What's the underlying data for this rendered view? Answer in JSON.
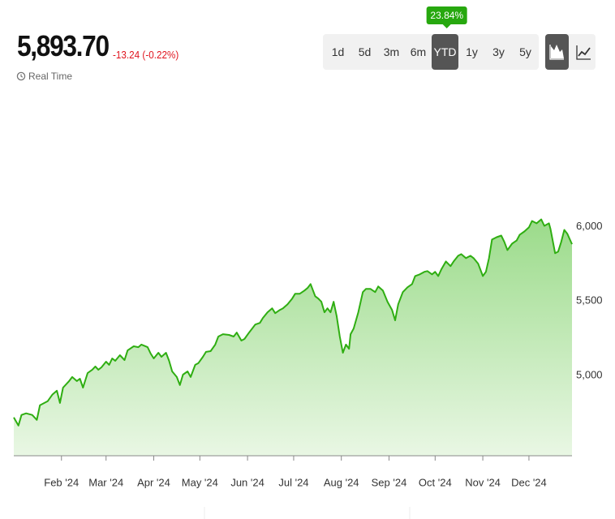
{
  "header": {
    "price": "5,893.70",
    "change": "-13.24 (-0.22%)",
    "real_time": "Real Time",
    "ranges": [
      "1d",
      "5d",
      "3m",
      "6m",
      "YTD",
      "1y",
      "3y",
      "5y"
    ],
    "selected_range": 4,
    "badge": "23.84%"
  },
  "chart_data": {
    "type": "area",
    "color": "#2fae12",
    "x": [
      1,
      4,
      6,
      9,
      13,
      16,
      18,
      23,
      26,
      29,
      31,
      33,
      37,
      39,
      42,
      44,
      46,
      49,
      52,
      54,
      56,
      58,
      61,
      63,
      65,
      67,
      70,
      73,
      75,
      79,
      82,
      84,
      88,
      90,
      92,
      95,
      97,
      100,
      102,
      104,
      107,
      109,
      111,
      114,
      116,
      119,
      121,
      124,
      126,
      129,
      132,
      134,
      137,
      141,
      144,
      146,
      149,
      151,
      154,
      158,
      161,
      163,
      166,
      169,
      171,
      174,
      176,
      179,
      182,
      184,
      187,
      190,
      192,
      194,
      197,
      199,
      201,
      203,
      205,
      207,
      209,
      211,
      213,
      215,
      217,
      219,
      220,
      222,
      225,
      228,
      230,
      233,
      236,
      238,
      241,
      244,
      247,
      249,
      251,
      254,
      257,
      260,
      262,
      265,
      268,
      270,
      273,
      275,
      277,
      279,
      282,
      285,
      287,
      290,
      292,
      295,
      298,
      300,
      303,
      306,
      308,
      310,
      312,
      315,
      318,
      320,
      322,
      325,
      328,
      330,
      333,
      336,
      338,
      341,
      344,
      346,
      349,
      350,
      353,
      355,
      357,
      359,
      361,
      364
    ],
    "values": [
      4717,
      4663,
      4734,
      4745,
      4734,
      4701,
      4799,
      4826,
      4870,
      4897,
      4815,
      4918,
      4962,
      4989,
      4962,
      4978,
      4918,
      5016,
      5038,
      5060,
      5038,
      5054,
      5092,
      5071,
      5114,
      5098,
      5136,
      5103,
      5168,
      5196,
      5190,
      5207,
      5190,
      5147,
      5114,
      5152,
      5125,
      5152,
      5098,
      5027,
      4989,
      4935,
      5005,
      5027,
      4989,
      5071,
      5082,
      5125,
      5158,
      5163,
      5207,
      5261,
      5277,
      5272,
      5261,
      5288,
      5234,
      5245,
      5288,
      5342,
      5353,
      5386,
      5424,
      5451,
      5418,
      5440,
      5451,
      5478,
      5516,
      5549,
      5549,
      5570,
      5587,
      5614,
      5532,
      5516,
      5495,
      5424,
      5451,
      5424,
      5495,
      5397,
      5261,
      5152,
      5207,
      5179,
      5277,
      5315,
      5424,
      5560,
      5581,
      5581,
      5560,
      5598,
      5570,
      5495,
      5440,
      5370,
      5478,
      5560,
      5592,
      5614,
      5668,
      5679,
      5696,
      5701,
      5679,
      5696,
      5668,
      5712,
      5766,
      5734,
      5766,
      5804,
      5815,
      5788,
      5804,
      5788,
      5750,
      5668,
      5696,
      5788,
      5913,
      5929,
      5940,
      5897,
      5842,
      5885,
      5907,
      5946,
      5967,
      5995,
      6038,
      6022,
      6049,
      6005,
      6022,
      5984,
      5821,
      5832,
      5897,
      5978,
      5951,
      5882
    ],
    "xlim": [
      1,
      364
    ],
    "xticks": [
      {
        "value": 32,
        "label": "Feb '24"
      },
      {
        "value": 61,
        "label": "Mar '24"
      },
      {
        "value": 92,
        "label": "Apr '24"
      },
      {
        "value": 122,
        "label": "May '24"
      },
      {
        "value": 153,
        "label": "Jun '24"
      },
      {
        "value": 183,
        "label": "Jul '24"
      },
      {
        "value": 214,
        "label": "Aug '24"
      },
      {
        "value": 245,
        "label": "Sep '24"
      },
      {
        "value": 275,
        "label": "Oct '24"
      },
      {
        "value": 306,
        "label": "Nov '24"
      },
      {
        "value": 336,
        "label": "Dec '24"
      }
    ],
    "ylim": [
      4460,
      6760
    ],
    "yticks": [
      {
        "value": 5000,
        "label": "5,000"
      },
      {
        "value": 5500,
        "label": "5,500"
      },
      {
        "value": 6000,
        "label": "6,000"
      }
    ],
    "y_axis_side": "right"
  }
}
